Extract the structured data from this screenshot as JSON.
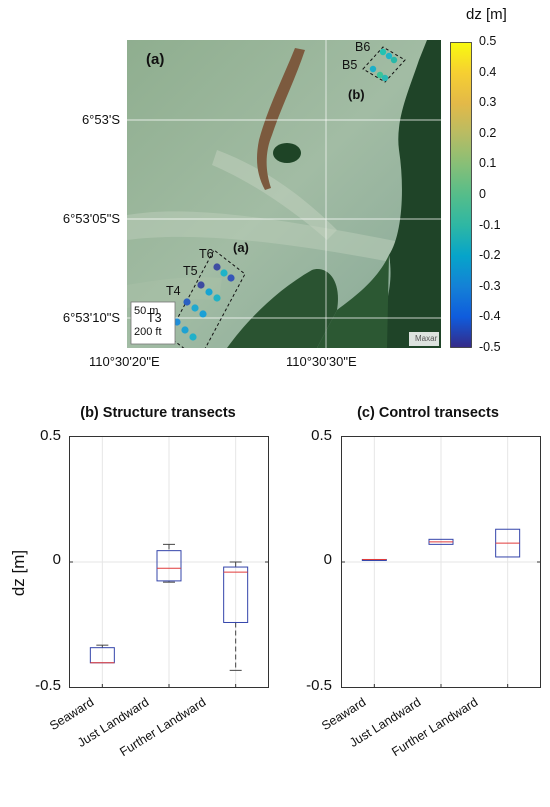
{
  "map": {
    "panel_label": "(a)",
    "inset_label_b": "(b)",
    "inset_label_a": "(a)",
    "transects": [
      "B6",
      "B5",
      "T6",
      "T5",
      "T4",
      "T3"
    ],
    "scale_m": "50 m",
    "scale_ft": "200 ft",
    "credit": "Maxar",
    "lat_labels": [
      "6°53'S",
      "6°53'05\"S",
      "6°53'10\"S"
    ],
    "lon_labels": [
      "110°30'20\"E",
      "110°30'30\"E"
    ],
    "colors": {
      "water": "#93ae9a",
      "mangrove": "#1f4428",
      "sand": "#7c5a3e"
    }
  },
  "colorbar": {
    "label": "dz [m]",
    "ticks": [
      "0.5",
      "0.4",
      "0.3",
      "0.2",
      "0.1",
      "0",
      "-0.1",
      "-0.2",
      "-0.3",
      "-0.4",
      "-0.5"
    ],
    "range": [
      -0.5,
      0.5
    ],
    "colormap": "parula"
  },
  "chart_data": [
    {
      "type": "box",
      "title": "(b) Structure transects",
      "ylabel": "dz [m]",
      "ylim": [
        -0.5,
        0.5
      ],
      "yticks": [
        "0.5",
        "0",
        "-0.5"
      ],
      "categories": [
        "Seaward",
        "Just Landward",
        "Further Landward"
      ],
      "boxes": [
        {
          "min": -0.4,
          "q1": -0.4,
          "median": -0.4,
          "q3": -0.34,
          "max": -0.33
        },
        {
          "min": -0.08,
          "q1": -0.075,
          "median": -0.025,
          "q3": 0.045,
          "max": 0.07
        },
        {
          "min": -0.43,
          "q1": -0.24,
          "median": -0.04,
          "q3": -0.02,
          "max": 0.0
        }
      ],
      "grid": true
    },
    {
      "type": "box",
      "title": "(c) Control transects",
      "ylim": [
        -0.5,
        0.5
      ],
      "yticks": [
        "0.5",
        "0",
        "-0.5"
      ],
      "categories": [
        "Seaward",
        "Just Landward",
        "Further Landward"
      ],
      "boxes": [
        {
          "min": 0.01,
          "q1": 0.01,
          "median": 0.01,
          "q3": 0.01,
          "max": 0.01
        },
        {
          "min": 0.07,
          "q1": 0.07,
          "median": 0.08,
          "q3": 0.09,
          "max": 0.09
        },
        {
          "min": 0.02,
          "q1": 0.02,
          "median": 0.075,
          "q3": 0.13,
          "max": 0.13
        }
      ],
      "grid": true
    }
  ],
  "style": {
    "box_color": "#3344aa",
    "median_color": "#e03a3a",
    "whisker_color": "#444444"
  }
}
